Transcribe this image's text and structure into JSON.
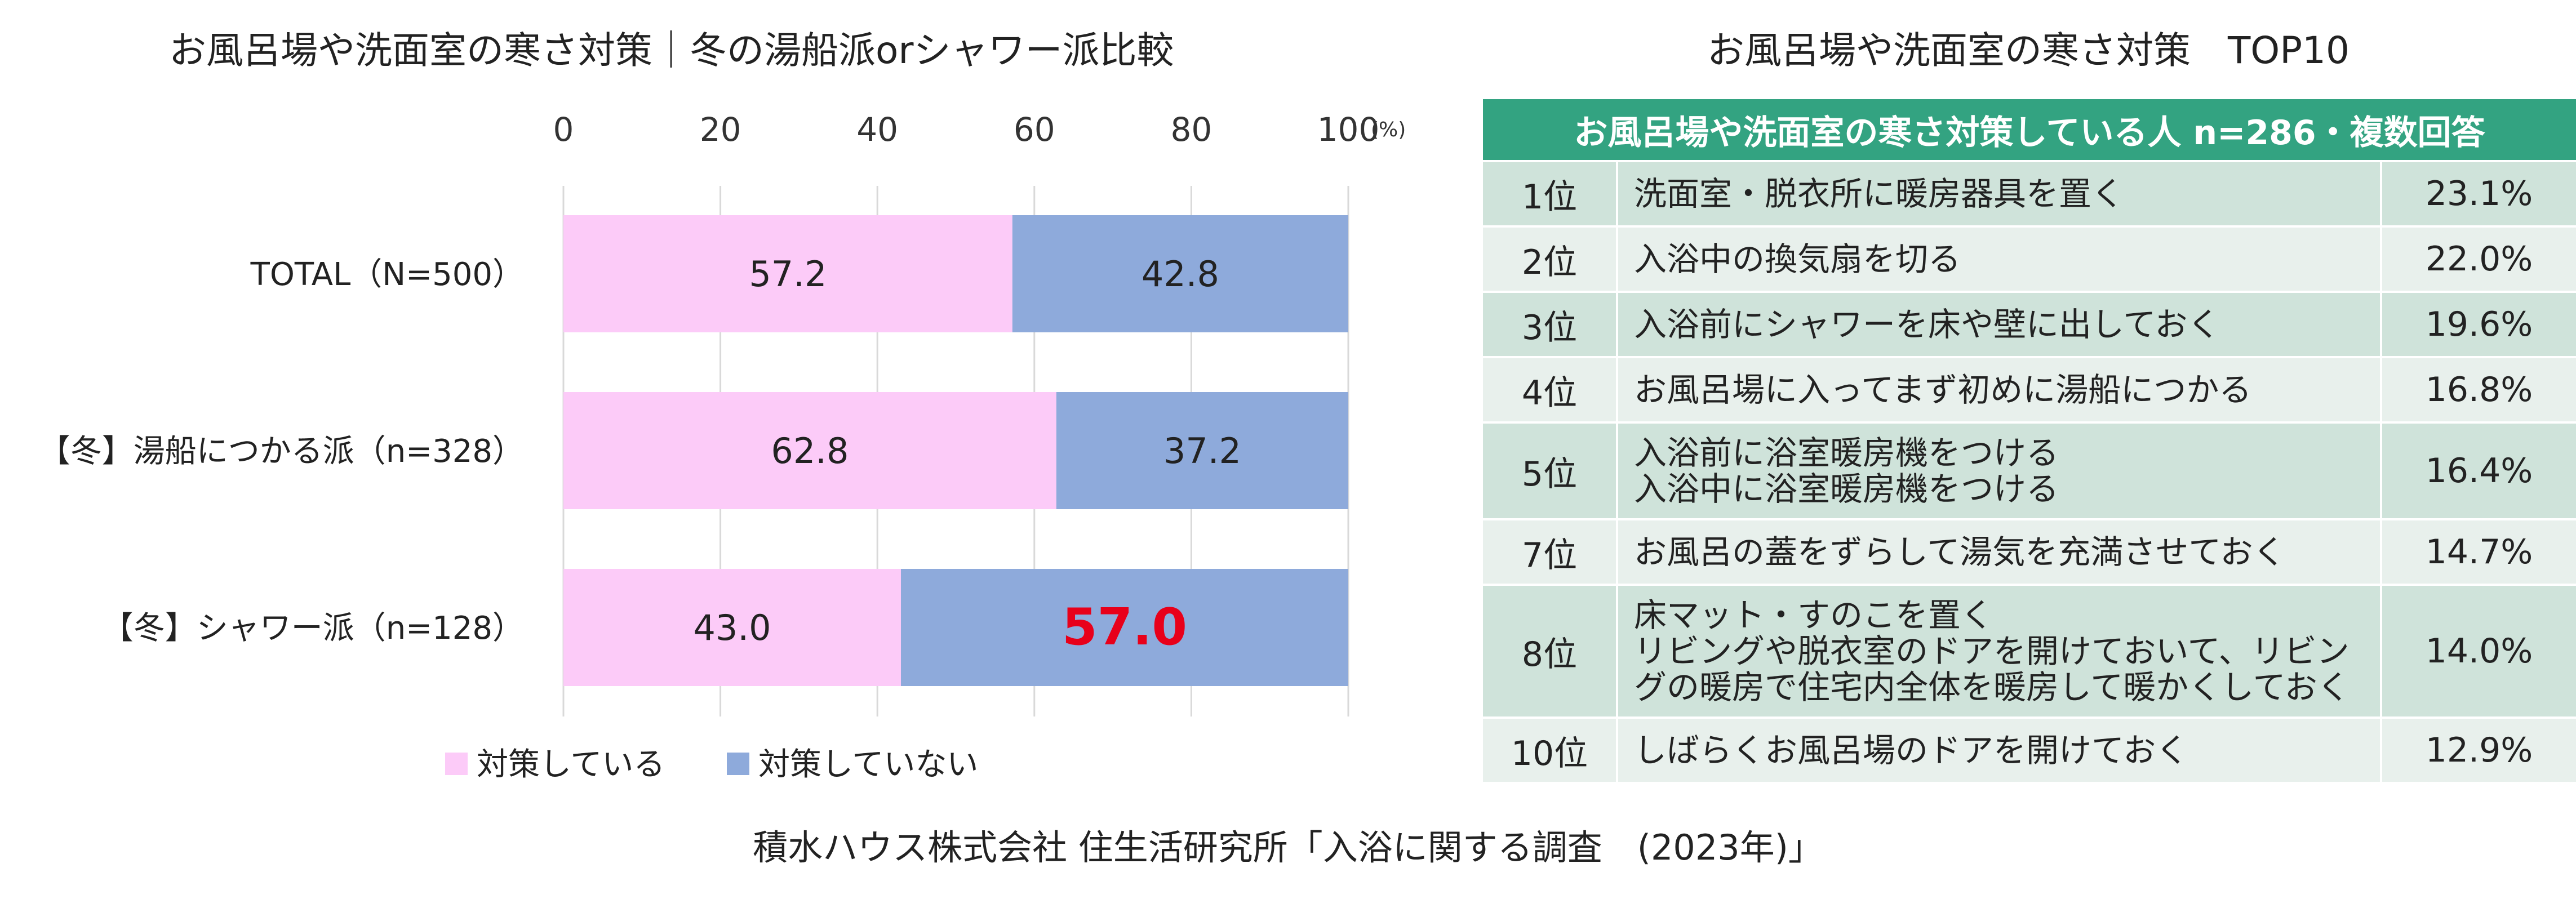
{
  "chart_data": {
    "type": "bar",
    "orientation": "horizontal",
    "stacked": true,
    "title": "お風呂場や洗面室の寒さ対策｜冬の湯船派orシャワー派比較",
    "x_ticks": [
      "0",
      "20",
      "40",
      "60",
      "80",
      "100"
    ],
    "x_unit": "(%)",
    "xlim": [
      0,
      100
    ],
    "grid": true,
    "legend_position": "bottom",
    "categories": [
      "TOTAL（N=500）",
      "【冬】湯船につかる派（n=328）",
      "【冬】シャワー派（n=128）"
    ],
    "series": [
      {
        "name": "対策している",
        "color": "#fccbf8",
        "values": [
          57.2,
          62.8,
          43.0
        ],
        "labels": [
          "57.2",
          "62.8",
          "43.0"
        ]
      },
      {
        "name": "対策していない",
        "color": "#8eaadb",
        "values": [
          42.8,
          37.2,
          57.0
        ],
        "labels": [
          "42.8",
          "37.2",
          "57.0"
        ]
      }
    ],
    "highlight": {
      "series": 1,
      "category": 2,
      "color": "#e8001a"
    }
  },
  "table": {
    "title": "お風呂場や洗面室の寒さ対策　TOP10",
    "header": "お風呂場や洗面室の寒さ対策している人 n=286・複数回答",
    "rows": [
      {
        "rank": "1位",
        "items": [
          "洗面室・脱衣所に暖房器具を置く"
        ],
        "pct": "23.1%"
      },
      {
        "rank": "2位",
        "items": [
          "入浴中の換気扇を切る"
        ],
        "pct": "22.0%"
      },
      {
        "rank": "3位",
        "items": [
          "入浴前にシャワーを床や壁に出しておく"
        ],
        "pct": "19.6%"
      },
      {
        "rank": "4位",
        "items": [
          "お風呂場に入ってまず初めに湯船につかる"
        ],
        "pct": "16.8%"
      },
      {
        "rank": "5位",
        "items": [
          "入浴前に浴室暖房機をつける",
          "入浴中に浴室暖房機をつける"
        ],
        "pct": "16.4%"
      },
      {
        "rank": "7位",
        "items": [
          "お風呂の蓋をずらして湯気を充満させておく"
        ],
        "pct": "14.7%"
      },
      {
        "rank": "8位",
        "items": [
          "床マット・すのこを置く",
          "リビングや脱衣室のドアを開けておいて、リビン",
          "グの暖房で住宅内全体を暖房して暖かくしておく"
        ],
        "pct": "14.0%"
      },
      {
        "rank": "10位",
        "items": [
          "しばらくお風呂場のドアを開けておく"
        ],
        "pct": "12.9%"
      }
    ]
  },
  "source": "積水ハウス株式会社 住生活研究所「入浴に関する調査　(2023年)」"
}
